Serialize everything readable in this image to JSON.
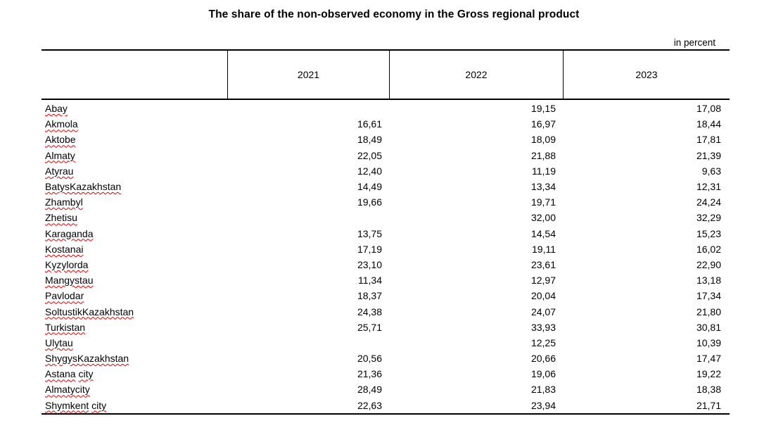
{
  "title": "The share of the non-observed economy in the Gross regional product",
  "unit_label": "in percent",
  "colors": {
    "border": "#000000",
    "text": "#000000",
    "spellcheck_squiggle": "#e00000",
    "background": "#ffffff"
  },
  "table": {
    "columns": [
      "2021",
      "2022",
      "2023"
    ],
    "rows": [
      {
        "region": "Abay",
        "values": [
          "",
          "19,15",
          "17,08"
        ]
      },
      {
        "region": "Akmola",
        "values": [
          "16,61",
          "16,97",
          "18,44"
        ]
      },
      {
        "region": "Aktobe",
        "values": [
          "18,49",
          "18,09",
          "17,81"
        ]
      },
      {
        "region": "Almaty",
        "values": [
          "22,05",
          "21,88",
          "21,39"
        ]
      },
      {
        "region": "Atyrau",
        "values": [
          "12,40",
          "11,19",
          "9,63"
        ]
      },
      {
        "region": "BatysKazakhstan",
        "values": [
          "14,49",
          "13,34",
          "12,31"
        ]
      },
      {
        "region": "Zhambyl",
        "values": [
          "19,66",
          "19,71",
          "24,24"
        ]
      },
      {
        "region": "Zhetisu",
        "values": [
          "",
          "32,00",
          "32,29"
        ]
      },
      {
        "region": "Karaganda",
        "values": [
          "13,75",
          "14,54",
          "15,23"
        ]
      },
      {
        "region": "Kostanai",
        "values": [
          "17,19",
          "19,11",
          "16,02"
        ]
      },
      {
        "region": "Kyzylorda",
        "values": [
          "23,10",
          "23,61",
          "22,90"
        ]
      },
      {
        "region": "Mangystau",
        "values": [
          "11,34",
          "12,97",
          "13,18"
        ]
      },
      {
        "region": "Pavlodar",
        "values": [
          "18,37",
          "20,04",
          "17,34"
        ]
      },
      {
        "region": "SoltustikKazakhstan",
        "values": [
          "24,38",
          "24,07",
          "21,80"
        ]
      },
      {
        "region": "Turkistan",
        "values": [
          "25,71",
          "33,93",
          "30,81"
        ]
      },
      {
        "region": "Ulytau",
        "values": [
          "",
          "12,25",
          "10,39"
        ]
      },
      {
        "region": "ShygysKazakhstan",
        "values": [
          "20,56",
          "20,66",
          "17,47"
        ]
      },
      {
        "region": "Astana city",
        "values": [
          "21,36",
          "19,06",
          "19,22"
        ]
      },
      {
        "region": "Almatycity",
        "values": [
          "28,49",
          "21,83",
          "18,38"
        ]
      },
      {
        "region": "Shymkent city",
        "values": [
          "22,63",
          "23,94",
          "21,71"
        ]
      }
    ]
  }
}
